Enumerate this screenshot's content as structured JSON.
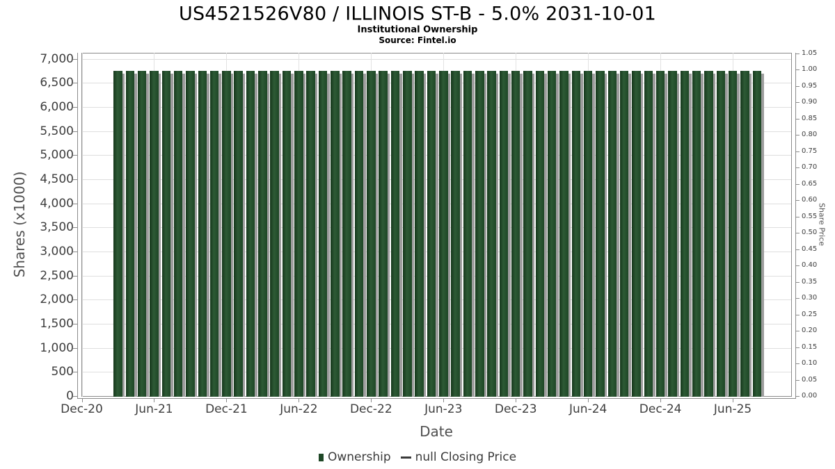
{
  "chart_data": {
    "type": "bar",
    "title": "US4521526V80 / ILLINOIS ST-B - 5.0% 2031-10-01",
    "subtitle": "Institutional Ownership",
    "source": "Source: Fintel.io",
    "xlabel": "Date",
    "ylabel_left": "Shares (x1000)",
    "ylabel_right": "Share Price",
    "grid": true,
    "y_left_axis": {
      "min": 0,
      "max": 7000,
      "step": 500,
      "tick_labels": [
        "7,000",
        "6,500",
        "6,000",
        "5,500",
        "5,000",
        "4,500",
        "4,000",
        "3,500",
        "3,000",
        "2,500",
        "2,000",
        "1,500",
        "1,000",
        "500",
        "0"
      ]
    },
    "y_right_axis": {
      "min": 0,
      "max": 1.05,
      "step": 0.05,
      "tick_labels": [
        "1.05",
        "1.00",
        "0.95",
        "0.90",
        "0.85",
        "0.80",
        "0.75",
        "0.70",
        "0.65",
        "0.60",
        "0.55",
        "0.50",
        "0.45",
        "0.40",
        "0.35",
        "0.30",
        "0.25",
        "0.20",
        "0.15",
        "0.10",
        "0.05",
        "0.00"
      ]
    },
    "x_axis": {
      "tick_labels": [
        "Dec-20",
        "Jun-21",
        "Dec-21",
        "Jun-22",
        "Dec-22",
        "Jun-23",
        "Dec-23",
        "Jun-24",
        "Dec-24",
        "Jun-25"
      ],
      "months_between_ticks": 6
    },
    "series": [
      {
        "name": "Ownership",
        "type": "bar",
        "color": "#1e4726",
        "categories": [
          "Mar-21",
          "Apr-21",
          "May-21",
          "Jun-21",
          "Jul-21",
          "Aug-21",
          "Sep-21",
          "Oct-21",
          "Nov-21",
          "Dec-21",
          "Jan-22",
          "Feb-22",
          "Mar-22",
          "Apr-22",
          "May-22",
          "Jun-22",
          "Jul-22",
          "Aug-22",
          "Sep-22",
          "Oct-22",
          "Nov-22",
          "Dec-22",
          "Jan-23",
          "Feb-23",
          "Mar-23",
          "Apr-23",
          "May-23",
          "Jun-23",
          "Jul-23",
          "Aug-23",
          "Sep-23",
          "Oct-23",
          "Nov-23",
          "Dec-23",
          "Jan-24",
          "Feb-24",
          "Mar-24",
          "Apr-24",
          "May-24",
          "Jun-24",
          "Jul-24",
          "Aug-24",
          "Sep-24",
          "Oct-24",
          "Nov-24",
          "Dec-24",
          "Jan-25",
          "Feb-25",
          "Mar-25",
          "Apr-25",
          "May-25",
          "Jun-25",
          "Jul-25",
          "Aug-25"
        ],
        "values": [
          6750,
          6750,
          6750,
          6750,
          6750,
          6750,
          6750,
          6750,
          6750,
          6750,
          6750,
          6750,
          6750,
          6750,
          6750,
          6750,
          6750,
          6750,
          6750,
          6750,
          6750,
          6750,
          6750,
          6750,
          6750,
          6750,
          6750,
          6750,
          6750,
          6750,
          6750,
          6750,
          6750,
          6750,
          6750,
          6750,
          6750,
          6750,
          6750,
          6750,
          6750,
          6750,
          6750,
          6750,
          6750,
          6750,
          6750,
          6750,
          6750,
          6750,
          6750,
          6750,
          6750,
          6750
        ]
      },
      {
        "name": "null Closing Price",
        "type": "line",
        "color": "#3a3a3a",
        "values": []
      }
    ],
    "legend": {
      "position": "bottom",
      "entries": [
        {
          "label": "Ownership",
          "marker": "square",
          "color": "#1e4726"
        },
        {
          "label": "null Closing Price",
          "marker": "line",
          "color": "#3a3a3a"
        }
      ]
    }
  }
}
